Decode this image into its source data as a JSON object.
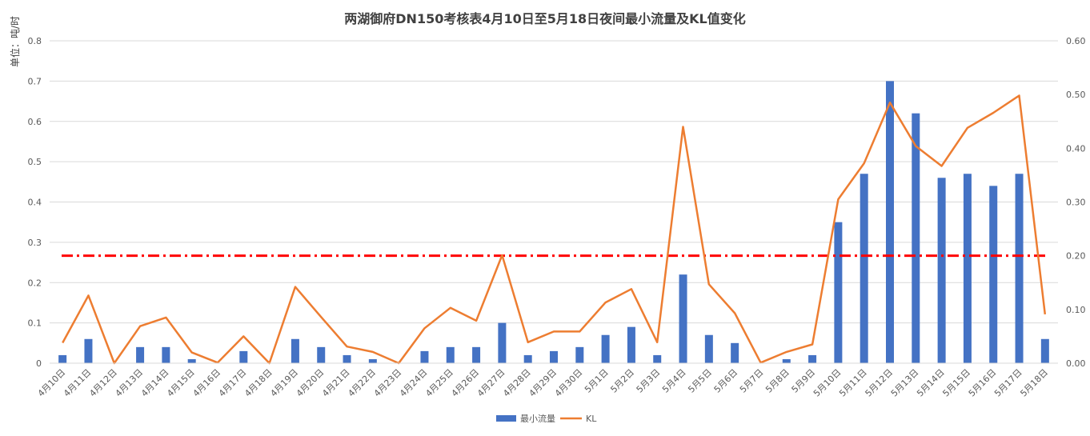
{
  "chart_data": {
    "type": "bar+line",
    "title": "两湖御府DN150考核表4月10日至5月18日夜间最小流量及KL值变化",
    "ylabel": "单位：吨/时",
    "y2label": "",
    "ylim": [
      0,
      0.8
    ],
    "y2lim": [
      0,
      0.6
    ],
    "yticks": [
      "0",
      "0.1",
      "0.2",
      "0.3",
      "0.4",
      "0.5",
      "0.6",
      "0.7",
      "0.8"
    ],
    "y2ticks": [
      "0.00",
      "0.10",
      "0.20",
      "0.30",
      "0.40",
      "0.50",
      "0.60"
    ],
    "grid": true,
    "legend_position": "bottom",
    "categories": [
      "4月10日",
      "4月11日",
      "4月12日",
      "4月13日",
      "4月14日",
      "4月15日",
      "4月16日",
      "4月17日",
      "4月18日",
      "4月19日",
      "4月20日",
      "4月21日",
      "4月22日",
      "4月23日",
      "4月24日",
      "4月25日",
      "4月26日",
      "4月27日",
      "4月28日",
      "4月29日",
      "4月30日",
      "5月1日",
      "5月2日",
      "5月3日",
      "5月4日",
      "5月5日",
      "5月6日",
      "5月7日",
      "5月8日",
      "5月9日",
      "5月10日",
      "5月11日",
      "5月12日",
      "5月13日",
      "5月14日",
      "5月15日",
      "5月16日",
      "5月17日",
      "5月18日"
    ],
    "series": [
      {
        "name": "最小流量",
        "type": "bar",
        "axis": "left",
        "color": "#4472C4",
        "values": [
          0.02,
          0.06,
          0,
          0.04,
          0.04,
          0.01,
          0,
          0.03,
          0,
          0.06,
          0.04,
          0.02,
          0.01,
          0,
          0.03,
          0.04,
          0.04,
          0.1,
          0.02,
          0.03,
          0.04,
          0.07,
          0.09,
          0.02,
          0.22,
          0.07,
          0.05,
          0,
          0.01,
          0.02,
          0.35,
          0.47,
          0.7,
          0.62,
          0.46,
          0.47,
          0.44,
          0.47,
          0.06
        ]
      },
      {
        "name": "KL",
        "type": "line",
        "axis": "right",
        "color": "#ED7D31",
        "values": [
          0.038,
          0.126,
          0,
          0.069,
          0.085,
          0.02,
          0.001,
          0.05,
          0,
          0.142,
          0.086,
          0.031,
          0.021,
          0,
          0.065,
          0.103,
          0.079,
          0.201,
          0.039,
          0.059,
          0.059,
          0.113,
          0.138,
          0.039,
          0.44,
          0.147,
          0.093,
          0.001,
          0.021,
          0.035,
          0.305,
          0.372,
          0.485,
          0.404,
          0.367,
          0.438,
          0.466,
          0.498,
          0.091
        ]
      }
    ],
    "reference_line": {
      "axis": "right",
      "value": 0.2,
      "color": "#FF0000",
      "style": "dash-dot"
    }
  },
  "colors": {
    "bar": "#4472C4",
    "line": "#ED7D31",
    "reference": "#FF0000",
    "grid": "#D9D9D9",
    "text": "#595959"
  }
}
